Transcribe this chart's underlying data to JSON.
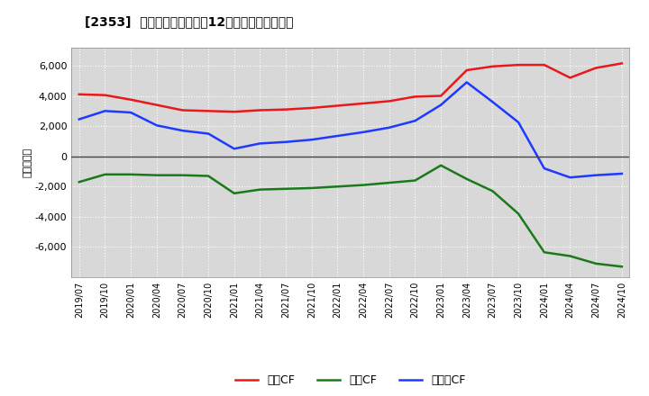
{
  "title": "[2353]  キャッシュフローの12か月移動合計の推移",
  "ylabel": "（百万円）",
  "xlabel_dates": [
    "2019/07",
    "2019/10",
    "2020/01",
    "2020/04",
    "2020/07",
    "2020/10",
    "2021/01",
    "2021/04",
    "2021/07",
    "2021/10",
    "2022/01",
    "2022/04",
    "2022/07",
    "2022/10",
    "2023/01",
    "2023/04",
    "2023/07",
    "2023/10",
    "2024/01",
    "2024/04",
    "2024/07",
    "2024/10"
  ],
  "eigyo_cf": [
    4100,
    4050,
    3750,
    3400,
    3050,
    3000,
    2950,
    3050,
    3100,
    3200,
    3350,
    3500,
    3650,
    3950,
    4000,
    5700,
    5950,
    6050,
    6050,
    5200,
    5850,
    6150
  ],
  "toshi_cf": [
    -1700,
    -1200,
    -1200,
    -1250,
    -1250,
    -1300,
    -2450,
    -2200,
    -2150,
    -2100,
    -2000,
    -1900,
    -1750,
    -1600,
    -600,
    -1500,
    -2300,
    -3800,
    -6350,
    -6600,
    -7100,
    -7300
  ],
  "free_cf": [
    2450,
    3000,
    2900,
    2050,
    1700,
    1500,
    500,
    850,
    950,
    1100,
    1350,
    1600,
    1900,
    2350,
    3400,
    4900,
    3600,
    2250,
    -800,
    -1400,
    -1250,
    -1150
  ],
  "color_eigyo": "#e8191c",
  "color_toshi": "#1a7a1a",
  "color_free": "#1e3aff",
  "ylim": [
    -8000,
    7200
  ],
  "yticks": [
    -6000,
    -4000,
    -2000,
    0,
    2000,
    4000,
    6000
  ],
  "background_color": "#ffffff",
  "plot_bg_color": "#d8d8d8",
  "grid_color": "#ffffff",
  "legend_labels": [
    "営業CF",
    "投資CF",
    "フリーCF"
  ]
}
